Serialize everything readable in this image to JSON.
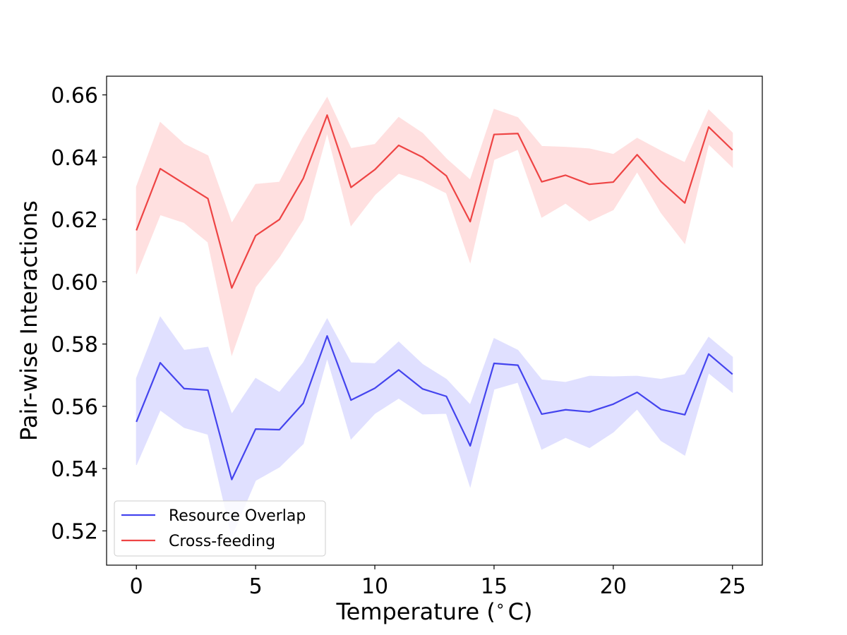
{
  "chart_data": {
    "type": "line",
    "title": "",
    "xlabel": "Temperature ($^\\circ$C)",
    "xlabel_display": "Temperature (",
    "xlabel_degree": "∘",
    "xlabel_unit": "C)",
    "ylabel": "Pair-wise Interactions",
    "xlim": [
      -1.25,
      26.25
    ],
    "ylim": [
      0.509,
      0.666
    ],
    "xticks": [
      0,
      5,
      10,
      15,
      20,
      25
    ],
    "xtick_labels": [
      "0",
      "5",
      "10",
      "15",
      "20",
      "25"
    ],
    "yticks": [
      0.52,
      0.54,
      0.56,
      0.58,
      0.6,
      0.62,
      0.64,
      0.66
    ],
    "ytick_labels": [
      "0.52",
      "0.54",
      "0.56",
      "0.58",
      "0.60",
      "0.62",
      "0.64",
      "0.66"
    ],
    "grid": false,
    "legend_position": "lower-left",
    "x": [
      0,
      1,
      2,
      3,
      4,
      5,
      6,
      7,
      8,
      9,
      10,
      11,
      12,
      13,
      14,
      15,
      16,
      17,
      18,
      19,
      20,
      21,
      22,
      23,
      24,
      25
    ],
    "series": [
      {
        "name": "Resource Overlap",
        "color": "#4444ee",
        "band_color": "#e0e0ff",
        "values": [
          0.555,
          0.574,
          0.5657,
          0.5652,
          0.5365,
          0.5527,
          0.5525,
          0.561,
          0.5826,
          0.562,
          0.5658,
          0.5717,
          0.5656,
          0.5632,
          0.5473,
          0.5738,
          0.5732,
          0.5575,
          0.5589,
          0.5582,
          0.5607,
          0.5645,
          0.559,
          0.5573,
          0.5768,
          0.5703
        ],
        "upper": [
          0.569,
          0.5887,
          0.578,
          0.579,
          0.5575,
          0.569,
          0.5645,
          0.574,
          0.5881,
          0.574,
          0.5737,
          0.5807,
          0.5735,
          0.5687,
          0.5605,
          0.5818,
          0.578,
          0.5685,
          0.5677,
          0.5697,
          0.5695,
          0.5697,
          0.5687,
          0.5702,
          0.5822,
          0.5758
        ],
        "lower": [
          0.5412,
          0.5588,
          0.5532,
          0.551,
          0.5183,
          0.5362,
          0.5405,
          0.548,
          0.5755,
          0.5495,
          0.5577,
          0.5626,
          0.5575,
          0.5577,
          0.5342,
          0.5655,
          0.5677,
          0.5462,
          0.55,
          0.5467,
          0.5517,
          0.5591,
          0.549,
          0.5443,
          0.5707,
          0.5645
        ]
      },
      {
        "name": "Cross-feeding",
        "color": "#ee4444",
        "band_color": "#ffe0e0",
        "values": [
          0.6165,
          0.6363,
          0.6315,
          0.6267,
          0.598,
          0.6148,
          0.62,
          0.6332,
          0.6535,
          0.6303,
          0.636,
          0.6438,
          0.64,
          0.634,
          0.6193,
          0.6473,
          0.6476,
          0.6321,
          0.6342,
          0.6313,
          0.632,
          0.6408,
          0.6322,
          0.6253,
          0.6497,
          0.6423
        ],
        "upper": [
          0.6305,
          0.6512,
          0.6442,
          0.6405,
          0.6188,
          0.6313,
          0.632,
          0.6465,
          0.6592,
          0.6428,
          0.6441,
          0.6528,
          0.6477,
          0.6395,
          0.6327,
          0.6554,
          0.6527,
          0.6435,
          0.6432,
          0.6427,
          0.6409,
          0.6461,
          0.642,
          0.6383,
          0.6552,
          0.6478
        ],
        "lower": [
          0.6025,
          0.6215,
          0.619,
          0.6127,
          0.5765,
          0.5983,
          0.608,
          0.62,
          0.6478,
          0.618,
          0.6279,
          0.6348,
          0.6323,
          0.6285,
          0.6062,
          0.6392,
          0.6425,
          0.6207,
          0.6252,
          0.6195,
          0.6231,
          0.6353,
          0.6222,
          0.6123,
          0.6442,
          0.6368
        ]
      }
    ]
  }
}
